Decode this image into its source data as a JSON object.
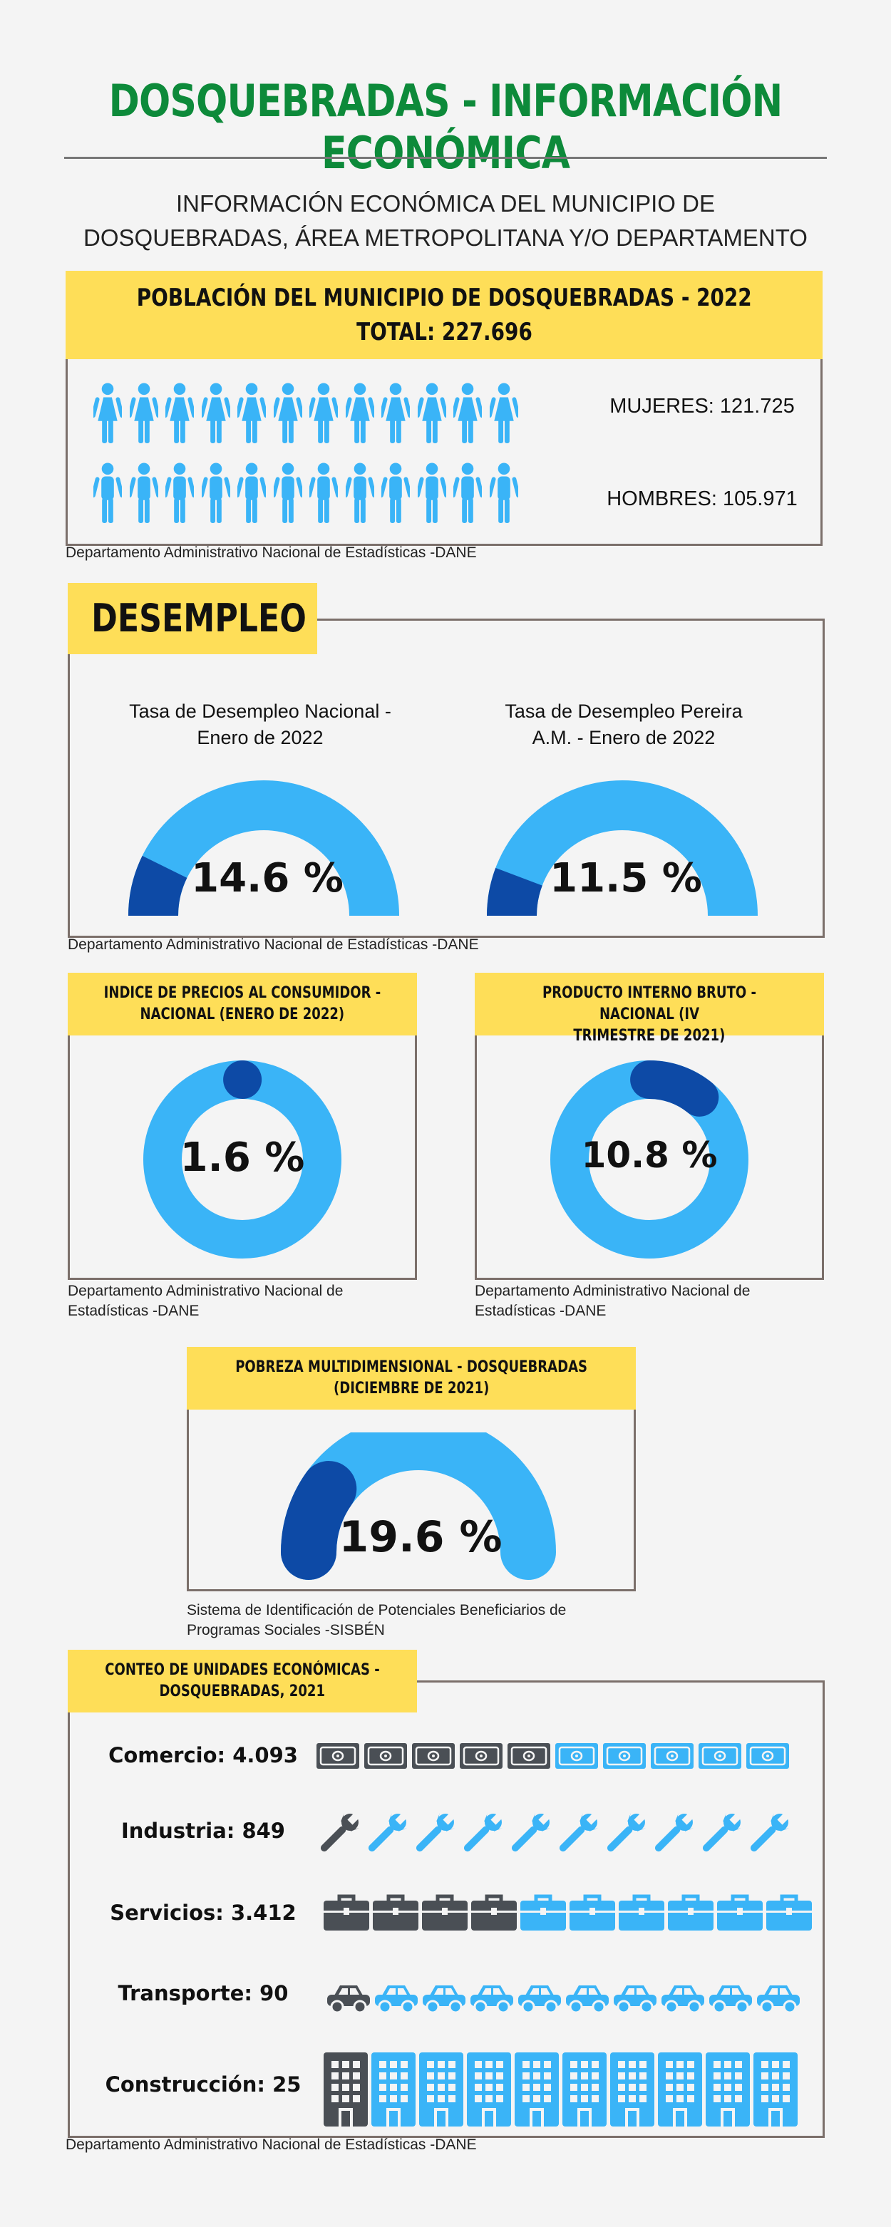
{
  "header": {
    "title": "DOSQUEBRADAS - INFORMACIÓN ECONÓMICA",
    "subtitle_line1": "INFORMACIÓN ECONÓMICA DEL MUNICIPIO DE",
    "subtitle_line2": "DOSQUEBRADAS, ÁREA METROPOLITANA Y/O DEPARTAMENTO"
  },
  "population": {
    "heading_line1": "POBLACIÓN DEL MUNICIPIO DE DOSQUEBRADAS - 2022",
    "heading_line2": "TOTAL: 227.696",
    "women_label": "MUJERES: 121.725",
    "men_label": "HOMBRES: 105.971",
    "women_icons": 12,
    "men_icons": 12,
    "source": "Departamento Administrativo Nacional de Estadísticas -DANE",
    "icon_color": "#3ab4f7"
  },
  "unemployment": {
    "heading": "DESEMPLEO",
    "national_label_line1": "Tasa de Desempleo Nacional -",
    "national_label_line2": "Enero de 2022",
    "national_value": "14.6 %",
    "national_fraction": 0.146,
    "pereira_label_line1": "Tasa de Desempleo Pereira",
    "pereira_label_line2": "A.M. - Enero de 2022",
    "pereira_value": "11.5 %",
    "pereira_fraction": 0.115,
    "source": "Departamento Administrativo Nacional de Estadísticas -DANE"
  },
  "ipc": {
    "heading_line1": "INDICE DE PRECIOS AL CONSUMIDOR -",
    "heading_line2": "NACIONAL (ENERO DE 2022)",
    "value": "1.6 %",
    "fraction": 0.016,
    "source_line1": "Departamento Administrativo Nacional de",
    "source_line2": "Estadísticas -DANE"
  },
  "pib": {
    "heading_line1": "PRODUCTO INTERNO BRUTO - NACIONAL (IV",
    "heading_line2": "TRIMESTRE DE 2021)",
    "value": "10.8 %",
    "fraction": 0.108,
    "source_line1": "Departamento Administrativo Nacional de",
    "source_line2": "Estadísticas -DANE"
  },
  "poverty": {
    "heading_line1": "POBREZA MULTIDIMENSIONAL - DOSQUEBRADAS",
    "heading_line2": "(DICIEMBRE DE 2021)",
    "value": "19.6 %",
    "fraction": 0.196,
    "source_line1": "Sistema de Identificación de Potenciales Beneficiarios de",
    "source_line2": "Programas Sociales -SISBÉN"
  },
  "units": {
    "heading_line1": "CONTEO DE UNIDADES ECONÓMICAS -",
    "heading_line2": "DOSQUEBRADAS, 2021",
    "rows": [
      {
        "label": "Comercio: 4.093",
        "icon": "banknote-icon",
        "dark": 5,
        "total": 10
      },
      {
        "label": "Industria: 849",
        "icon": "wrench-icon",
        "dark": 1,
        "total": 10
      },
      {
        "label": "Servicios: 3.412",
        "icon": "briefcase-icon",
        "dark": 4,
        "total": 10
      },
      {
        "label": "Transporte: 90",
        "icon": "car-icon",
        "dark": 1,
        "total": 10
      },
      {
        "label": "Construcción: 25",
        "icon": "building-icon",
        "dark": 1,
        "total": 10
      }
    ],
    "source": "Departamento Administrativo Nacional de Estadísticas -DANE"
  },
  "colors": {
    "light_blue": "#3ab4f7",
    "dark_blue": "#0d4aa6",
    "dark_gray": "#4a4f55",
    "yellow": "#fede58",
    "green": "#0d8a3a"
  }
}
